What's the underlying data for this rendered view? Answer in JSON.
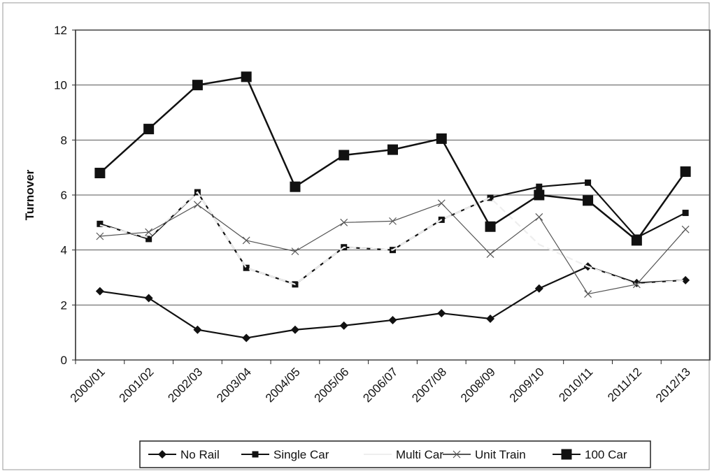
{
  "chart_data": {
    "type": "line",
    "y_label": "Turnover",
    "categories": [
      "2000/01",
      "2001/02",
      "2002/03",
      "2003/04",
      "2004/05",
      "2005/06",
      "2006/07",
      "2007/08",
      "2008/09",
      "2009/10",
      "2010/11",
      "2011/12",
      "2012/13"
    ],
    "series": [
      {
        "name": "No Rail",
        "color": "#111111",
        "marker": "diamond",
        "values": [
          2.5,
          2.25,
          1.1,
          0.8,
          1.1,
          1.25,
          1.45,
          1.7,
          1.5,
          2.6,
          3.4,
          2.8,
          2.9
        ]
      },
      {
        "name": "Single Car",
        "color": "#111111",
        "marker": "small-square",
        "values": [
          4.95,
          4.4,
          6.1,
          3.35,
          2.75,
          4.1,
          4.0,
          5.1,
          5.9,
          6.3,
          6.45,
          4.45,
          5.35
        ]
      },
      {
        "name": "Multi Car",
        "color": "#eeeeee",
        "marker": "none",
        "values": [
          4.9,
          4.45,
          6.1,
          3.35,
          2.75,
          4.1,
          4.0,
          5.1,
          5.9,
          4.2,
          3.4,
          2.75,
          2.9
        ]
      },
      {
        "name": "Unit Train",
        "color": "#555555",
        "marker": "x",
        "values": [
          4.5,
          4.65,
          5.65,
          4.35,
          3.95,
          5.0,
          5.05,
          5.7,
          3.85,
          5.2,
          2.4,
          2.75,
          4.75
        ]
      },
      {
        "name": "100 Car",
        "color": "#111111",
        "marker": "big-square",
        "values": [
          6.8,
          8.4,
          10.0,
          10.3,
          6.3,
          7.45,
          7.65,
          8.05,
          4.85,
          6.0,
          5.8,
          4.35,
          6.85
        ]
      }
    ],
    "ylim": [
      0,
      12
    ],
    "yticks": [
      0,
      2,
      4,
      6,
      8,
      10,
      12
    ],
    "grid": true,
    "legend": "bottom"
  }
}
